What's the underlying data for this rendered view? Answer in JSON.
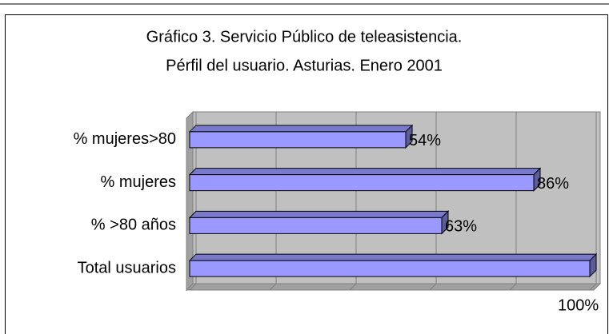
{
  "chart_data": {
    "type": "bar",
    "orientation": "horizontal",
    "title": "Gráfico 3. Servicio Público de teleasistencia.",
    "subtitle": "Pérfil del usuario. Asturias. Enero 2001",
    "categories": [
      "% mujeres>80",
      "% mujeres",
      "% >80 años",
      "Total usuarios"
    ],
    "values": [
      54,
      86,
      63,
      100
    ],
    "value_labels": [
      "54%",
      "86%",
      "63%",
      "100%"
    ],
    "color": "#9999ff",
    "xlim": [
      0,
      100
    ],
    "xticks": [
      0,
      20,
      40,
      60,
      80,
      100
    ],
    "grid": true
  }
}
